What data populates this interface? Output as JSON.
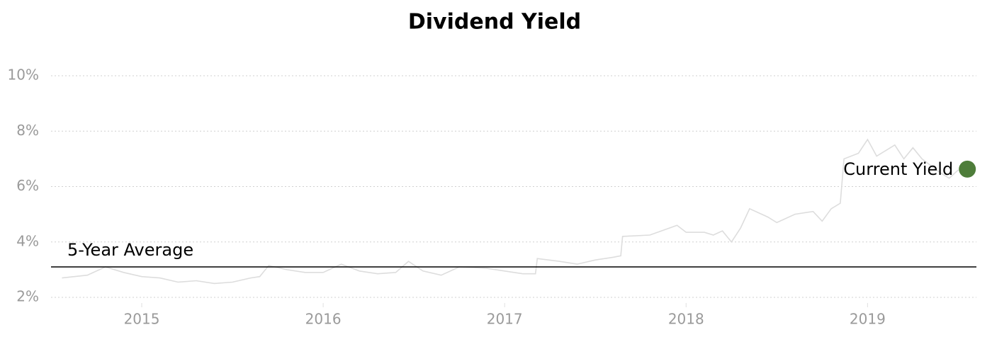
{
  "chart_data": {
    "type": "line",
    "title": "Dividend Yield",
    "x": [
      2014.56,
      2014.7,
      2014.8,
      2014.9,
      2015.0,
      2015.1,
      2015.2,
      2015.3,
      2015.4,
      2015.5,
      2015.6,
      2015.65,
      2015.7,
      2015.8,
      2015.9,
      2016.0,
      2016.05,
      2016.1,
      2016.2,
      2016.3,
      2016.4,
      2016.47,
      2016.55,
      2016.65,
      2016.75,
      2016.9,
      2017.0,
      2017.1,
      2017.17,
      2017.18,
      2017.3,
      2017.4,
      2017.5,
      2017.6,
      2017.64,
      2017.65,
      2017.8,
      2017.95,
      2018.0,
      2018.1,
      2018.15,
      2018.2,
      2018.25,
      2018.3,
      2018.35,
      2018.45,
      2018.5,
      2018.6,
      2018.7,
      2018.75,
      2018.8,
      2018.85,
      2018.87,
      2018.95,
      2019.0,
      2019.05,
      2019.15,
      2019.2,
      2019.25,
      2019.3,
      2019.4,
      2019.45,
      2019.5
    ],
    "values": [
      2.7,
      2.8,
      3.1,
      2.9,
      2.75,
      2.7,
      2.55,
      2.6,
      2.5,
      2.55,
      2.7,
      2.75,
      3.15,
      3.0,
      2.9,
      2.9,
      3.05,
      3.2,
      2.95,
      2.85,
      2.9,
      3.3,
      2.95,
      2.8,
      3.1,
      3.05,
      2.95,
      2.85,
      2.85,
      3.4,
      3.3,
      3.2,
      3.35,
      3.45,
      3.5,
      4.2,
      4.25,
      4.6,
      4.35,
      4.35,
      4.25,
      4.4,
      4.0,
      4.5,
      5.2,
      4.9,
      4.7,
      5.0,
      5.1,
      4.75,
      5.2,
      5.4,
      7.0,
      7.2,
      7.7,
      7.1,
      7.5,
      7.0,
      7.4,
      7.0,
      6.5,
      6.3,
      6.6
    ],
    "color": "#dddddd",
    "xlim": [
      2014.5,
      2019.6
    ],
    "xticks": [
      2015,
      2016,
      2017,
      2018,
      2019
    ],
    "ylim": [
      2,
      10
    ],
    "yticks": [
      {
        "value": 2,
        "label": "2%"
      },
      {
        "value": 4,
        "label": "4%"
      },
      {
        "value": 6,
        "label": "6%"
      },
      {
        "value": 8,
        "label": "8%"
      },
      {
        "value": 10,
        "label": "10%"
      }
    ],
    "grid": true,
    "average": {
      "label": "5-Year Average",
      "value": 3.1,
      "color": "#000000"
    },
    "current": {
      "label": "Current Yield",
      "x": 2019.55,
      "value": 6.63,
      "color": "#4e7d3a"
    }
  }
}
